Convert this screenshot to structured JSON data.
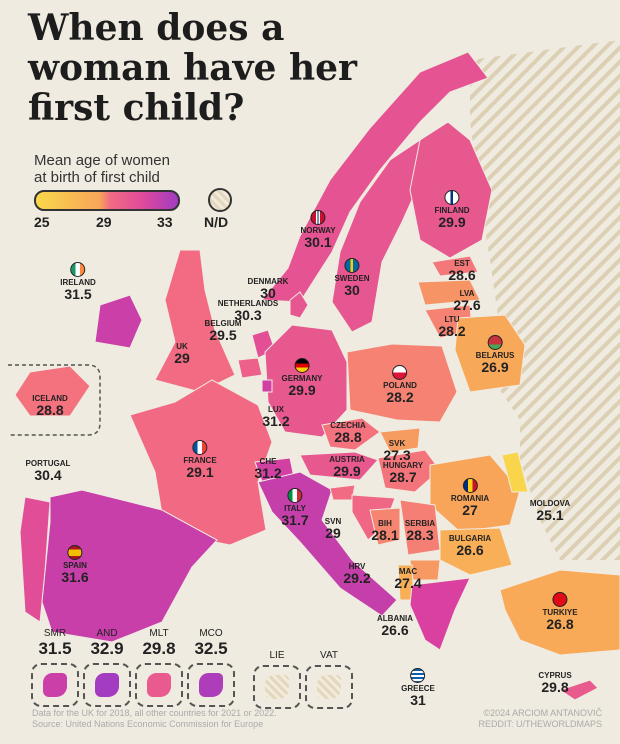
{
  "title": "When does a woman have her first child?",
  "legend": {
    "title_line1": "Mean age of women",
    "title_line2": "at birth of first child",
    "min": "25",
    "mid": "29",
    "max": "33",
    "nd": "N/D",
    "colors": {
      "25": "#f9d84a",
      "27": "#f8a55a",
      "29": "#f36b82",
      "31": "#d9409f",
      "33": "#a03cc2",
      "nd": "#e3d8be"
    }
  },
  "countries": [
    {
      "name": "NORWAY",
      "value": "30.1",
      "flag": "norway"
    },
    {
      "name": "SWEDEN",
      "value": "30",
      "flag": "sweden"
    },
    {
      "name": "FINLAND",
      "value": "29.9",
      "flag": "finland"
    },
    {
      "name": "DENMARK",
      "value": "30"
    },
    {
      "name": "NETHERLANDS",
      "value": "30.3"
    },
    {
      "name": "BELGIUM",
      "value": "29.5"
    },
    {
      "name": "UK",
      "value": "29"
    },
    {
      "name": "IRELAND",
      "value": "31.5",
      "flag": "ireland"
    },
    {
      "name": "ICELAND",
      "value": "28.8"
    },
    {
      "name": "GERMANY",
      "value": "29.9",
      "flag": "germany"
    },
    {
      "name": "POLAND",
      "value": "28.2",
      "flag": "poland"
    },
    {
      "name": "EST",
      "value": "28.6"
    },
    {
      "name": "LVA",
      "value": "27.6"
    },
    {
      "name": "LTU",
      "value": "28.2"
    },
    {
      "name": "BELARUS",
      "value": "26.9",
      "flag": "belarus"
    },
    {
      "name": "LUX",
      "value": "31.2"
    },
    {
      "name": "FRANCE",
      "value": "29.1",
      "flag": "france"
    },
    {
      "name": "CZECHIA",
      "value": "28.8"
    },
    {
      "name": "SVK",
      "value": "27.3"
    },
    {
      "name": "AUSTRIA",
      "value": "29.9"
    },
    {
      "name": "HUNGARY",
      "value": "28.7"
    },
    {
      "name": "CHE",
      "value": "31.2"
    },
    {
      "name": "ITALY",
      "value": "31.7",
      "flag": "italy"
    },
    {
      "name": "ROMANIA",
      "value": "27",
      "flag": "romania"
    },
    {
      "name": "MOLDOVA",
      "value": "25.1"
    },
    {
      "name": "PORTUGAL",
      "value": "30.4"
    },
    {
      "name": "SPAIN",
      "value": "31.6",
      "flag": "spain"
    },
    {
      "name": "SVN",
      "value": "29"
    },
    {
      "name": "HRV",
      "value": "29.2"
    },
    {
      "name": "BIH",
      "value": "28.1"
    },
    {
      "name": "SERBIA",
      "value": "28.3"
    },
    {
      "name": "BULGARIA",
      "value": "26.6"
    },
    {
      "name": "MAC",
      "value": "27.4"
    },
    {
      "name": "ALBANIA",
      "value": "26.6"
    },
    {
      "name": "TURKIYE",
      "value": "26.8",
      "flag": "turkey"
    },
    {
      "name": "GREECE",
      "value": "31",
      "flag": "greece"
    },
    {
      "name": "CYPRUS",
      "value": "29.8"
    }
  ],
  "microstates": [
    {
      "name": "SMR",
      "value": "31.5"
    },
    {
      "name": "AND",
      "value": "32.9"
    },
    {
      "name": "MLT",
      "value": "29.8"
    },
    {
      "name": "MCO",
      "value": "32.5"
    },
    {
      "name": "LIE",
      "value": null
    },
    {
      "name": "VAT",
      "value": null
    }
  ],
  "footer": {
    "note": "Data for the UK for 2018, all other countries for 2021 or 2022.",
    "source": "Source: United Nations Economic Commission for Europe",
    "credit": "©2024 ARCIOM ANTANOVIČ",
    "reddit": "REDDIT: U/THEWORLDMAPS"
  }
}
